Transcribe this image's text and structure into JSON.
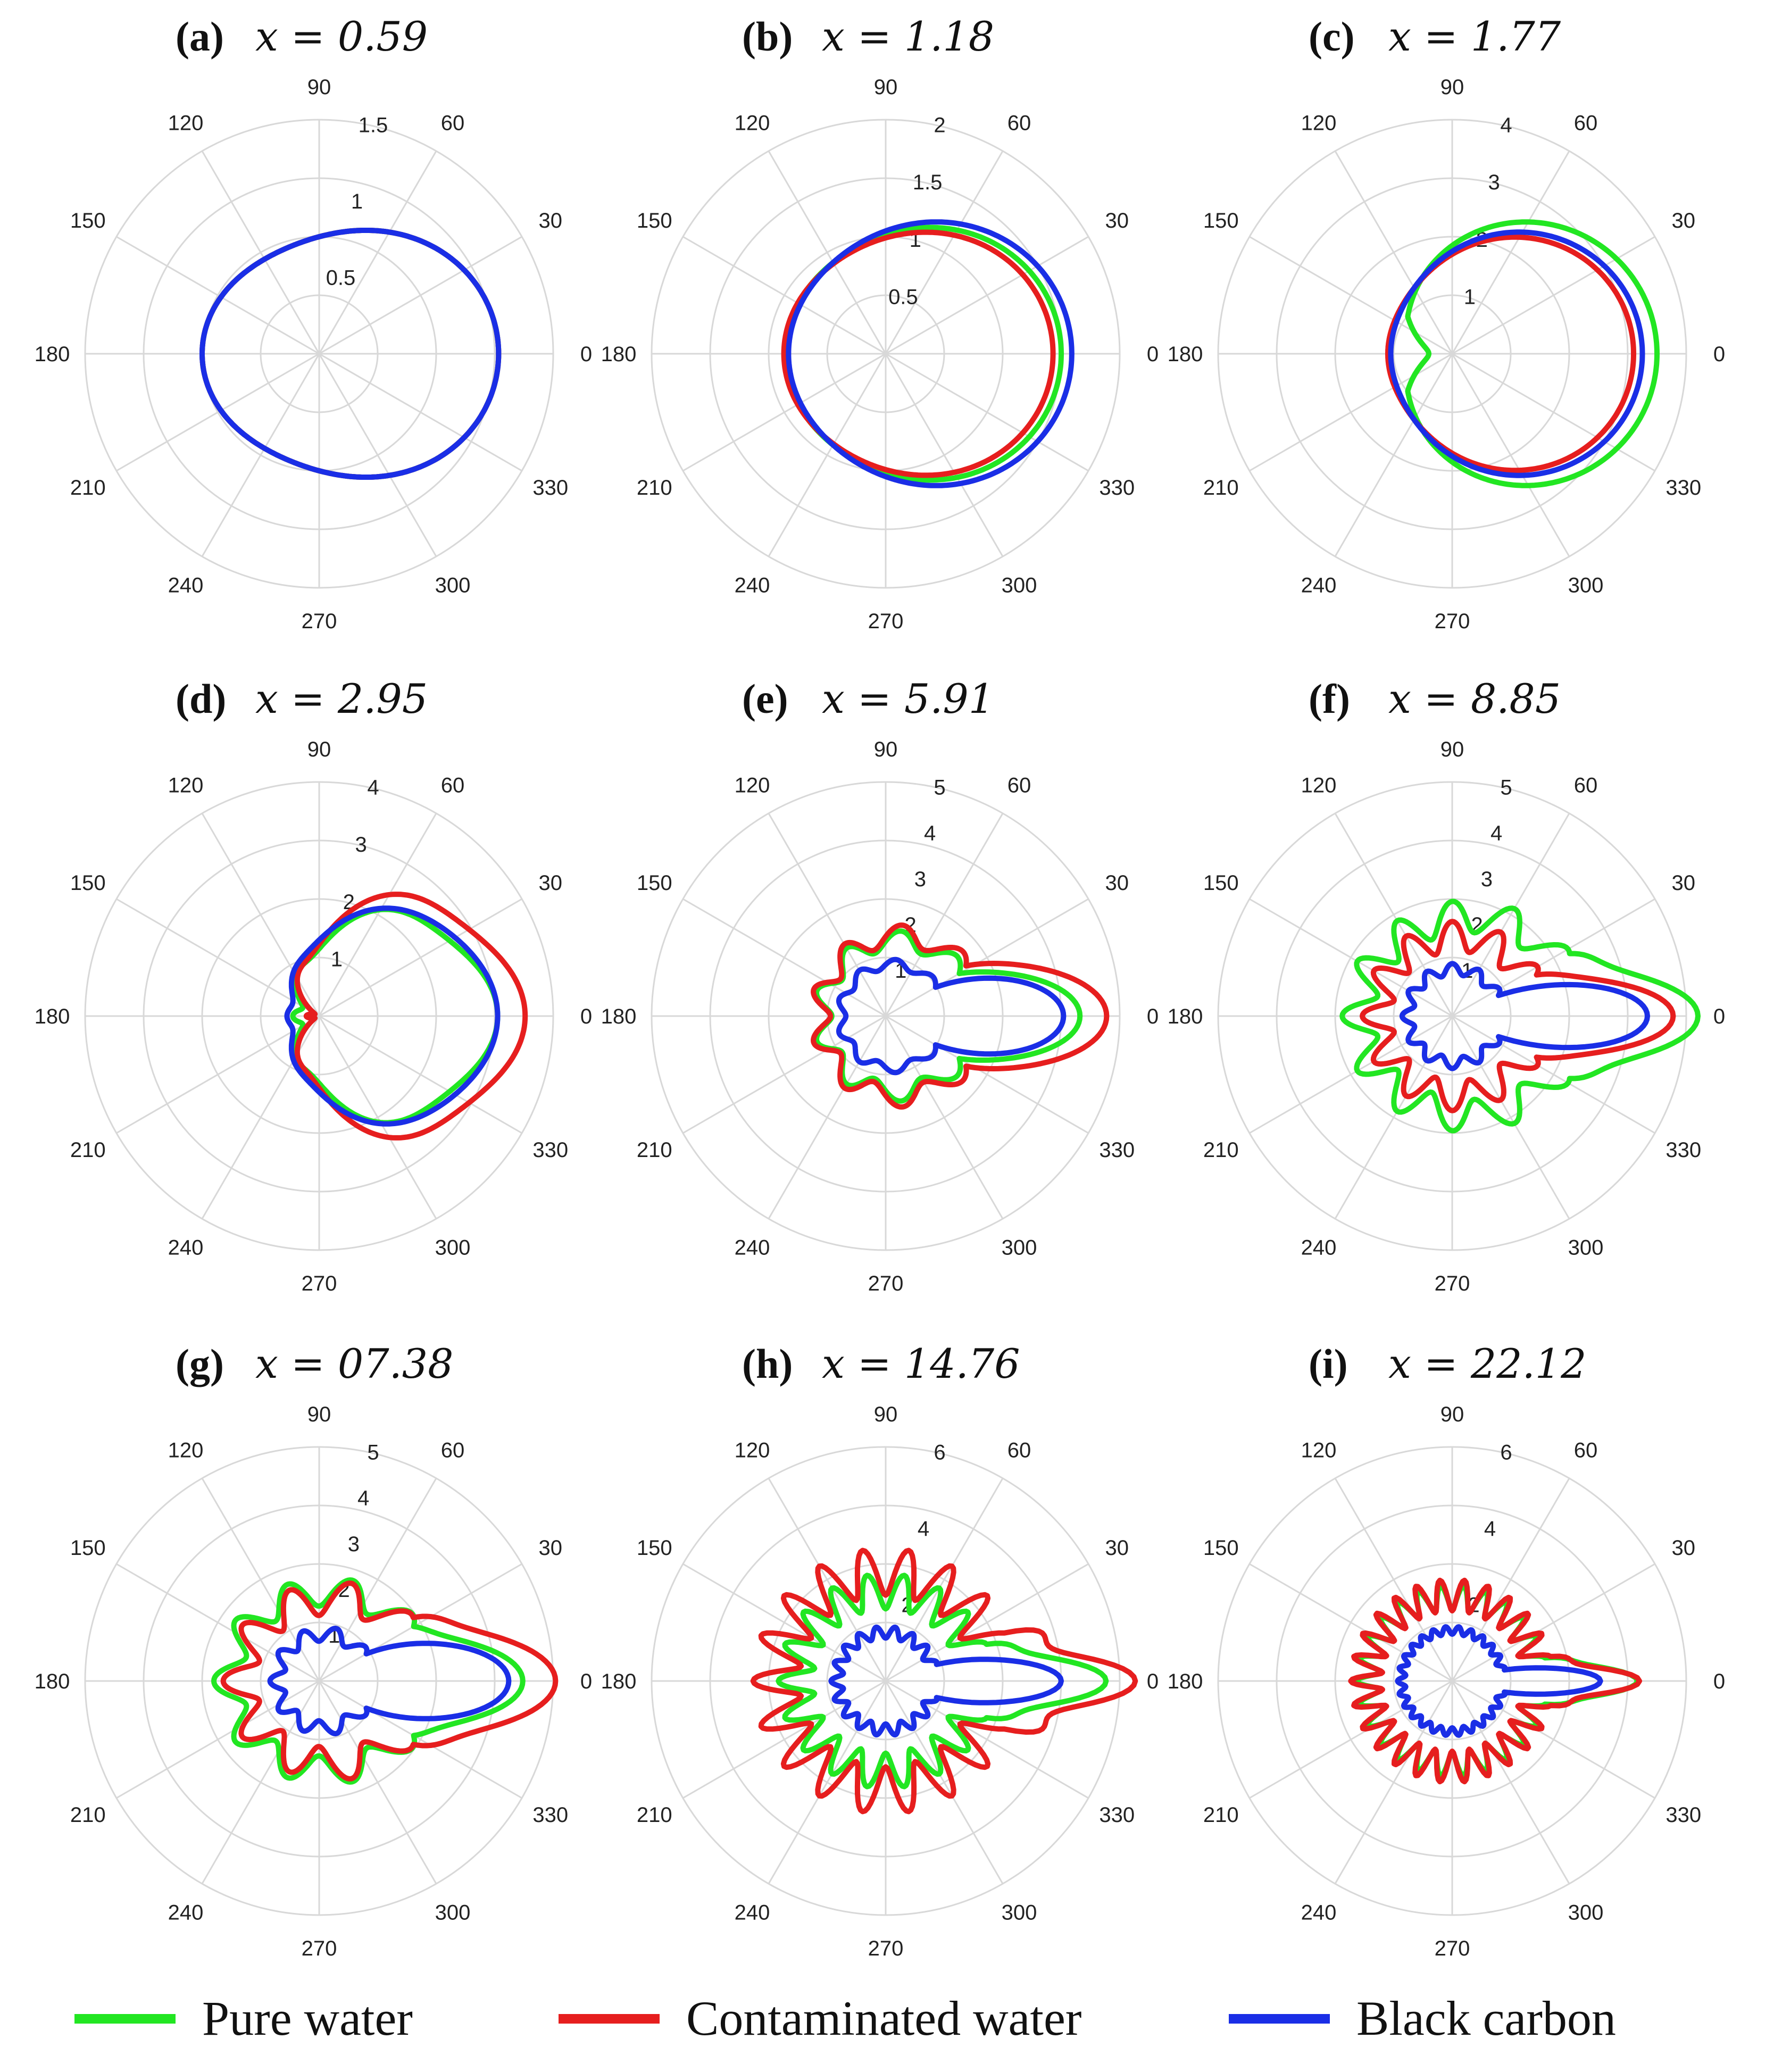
{
  "colors": {
    "pure_water": "#22e622",
    "contaminated_water": "#e61e1e",
    "black_carbon": "#1a2ee6",
    "grid": "#d8d8d8"
  },
  "legend": [
    {
      "key": "pure_water",
      "label": "Pure water",
      "color": "#22e622"
    },
    {
      "key": "contaminated_water",
      "label": "Contaminated water",
      "color": "#e61e1e"
    },
    {
      "key": "black_carbon",
      "label": "Black carbon",
      "color": "#1a2ee6"
    }
  ],
  "angle_ticks": [
    "0",
    "30",
    "60",
    "90",
    "120",
    "150",
    "180",
    "210",
    "240",
    "270",
    "300",
    "330"
  ],
  "chart_data": [
    {
      "type": "polar",
      "panel": "(a)",
      "title": "x = 0.59",
      "r_max": 1.5,
      "r_ticks": [
        "0.5",
        "1",
        "1.5"
      ],
      "r_tick_values": [
        0.5,
        1,
        1.5
      ],
      "series": [
        {
          "name": "Pure water",
          "model": {
            "base": 0.85,
            "a1": 0.2,
            "a2": 0.1,
            "osc": 0,
            "freq": 0,
            "fwd": 0,
            "fwd_w": 0,
            "dip": 0
          }
        },
        {
          "name": "Contaminated water",
          "model": {
            "base": 0.85,
            "a1": 0.2,
            "a2": 0.1,
            "osc": 0,
            "freq": 0,
            "fwd": 0,
            "fwd_w": 0,
            "dip": 0
          }
        },
        {
          "name": "Black carbon",
          "model": {
            "base": 0.85,
            "a1": 0.2,
            "a2": 0.1,
            "osc": 0,
            "freq": 0,
            "fwd": 0,
            "fwd_w": 0,
            "dip": 0
          }
        }
      ]
    },
    {
      "type": "polar",
      "panel": "(b)",
      "title": "x = 1.18",
      "r_max": 2,
      "r_ticks": [
        "0.5",
        "1",
        "1.5",
        "2"
      ],
      "r_tick_values": [
        0.5,
        1,
        1.5,
        2
      ],
      "series": [
        {
          "name": "Pure water",
          "model": {
            "base": 1.1,
            "a1": 0.32,
            "a2": 0.08,
            "osc": 0,
            "freq": 0,
            "fwd": 0,
            "fwd_w": 0,
            "dip": 0
          }
        },
        {
          "name": "Contaminated water",
          "model": {
            "base": 1.07,
            "a1": 0.28,
            "a2": 0.08,
            "osc": 0,
            "freq": 0,
            "fwd": 0,
            "fwd_w": 0,
            "dip": 0
          }
        },
        {
          "name": "Black carbon",
          "model": {
            "base": 1.13,
            "a1": 0.38,
            "a2": 0.08,
            "osc": 0,
            "freq": 0,
            "fwd": 0,
            "fwd_w": 0,
            "dip": 0
          }
        }
      ]
    },
    {
      "type": "polar",
      "panel": "(c)",
      "title": "x = 1.77",
      "r_max": 4,
      "r_ticks": [
        "1",
        "2",
        "3",
        "4"
      ],
      "r_tick_values": [
        1,
        2,
        3,
        4
      ],
      "series": [
        {
          "name": "Pure water",
          "model": {
            "base": 2.0,
            "a1": 1.35,
            "a2": 0.15,
            "osc": 0,
            "freq": 0,
            "fwd": 0,
            "fwd_w": 0,
            "dip": 0.4
          }
        },
        {
          "name": "Contaminated water",
          "model": {
            "base": 1.9,
            "a1": 1.0,
            "a2": 0.2,
            "osc": 0,
            "freq": 0,
            "fwd": 0,
            "fwd_w": 0,
            "dip": 0
          }
        },
        {
          "name": "Black carbon",
          "model": {
            "base": 1.95,
            "a1": 1.1,
            "a2": 0.2,
            "osc": 0,
            "freq": 0,
            "fwd": 0,
            "fwd_w": 0,
            "dip": 0
          }
        }
      ]
    },
    {
      "type": "polar",
      "panel": "(d)",
      "title": "x = 2.95",
      "r_max": 4,
      "r_ticks": [
        "1",
        "2",
        "3",
        "4"
      ],
      "r_tick_values": [
        1,
        2,
        3,
        4
      ],
      "series": [
        {
          "name": "Pure water",
          "model": {
            "base": 1.45,
            "a1": 1.3,
            "a2": 0.2,
            "osc": 0.1,
            "freq": 6,
            "fwd": 0,
            "fwd_w": 0,
            "dip": 0
          }
        },
        {
          "name": "Contaminated water",
          "model": {
            "base": 1.55,
            "a1": 1.65,
            "a2": 0.2,
            "osc": 0.12,
            "freq": 6,
            "fwd": 0,
            "fwd_w": 0,
            "dip": 0
          }
        },
        {
          "name": "Black carbon",
          "model": {
            "base": 1.55,
            "a1": 1.25,
            "a2": 0.2,
            "osc": 0.05,
            "freq": 6,
            "fwd": 0,
            "fwd_w": 0,
            "dip": 0
          }
        }
      ]
    },
    {
      "type": "polar",
      "panel": "(e)",
      "title": "x = 5.91",
      "r_max": 5,
      "r_ticks": [
        "1",
        "2",
        "3",
        "4",
        "5"
      ],
      "r_tick_values": [
        1,
        2,
        3,
        4,
        5
      ],
      "series": [
        {
          "name": "Pure water",
          "model": {
            "base": 1.6,
            "a1": 0.25,
            "a2": 0,
            "osc": 0.2,
            "freq": 9,
            "fwd": 2.1,
            "fwd_w": 30,
            "dip": 0
          }
        },
        {
          "name": "Contaminated water",
          "model": {
            "base": 1.7,
            "a1": 0.3,
            "a2": 0,
            "osc": 0.22,
            "freq": 9,
            "fwd": 2.5,
            "fwd_w": 32,
            "dip": 0
          }
        },
        {
          "name": "Black carbon",
          "model": {
            "base": 1.1,
            "a1": 0.15,
            "a2": 0,
            "osc": 0.1,
            "freq": 9,
            "fwd": 2.45,
            "fwd_w": 30,
            "dip": 0
          }
        }
      ]
    },
    {
      "type": "polar",
      "panel": "(f)",
      "title": "x = 8.85",
      "r_max": 5,
      "r_ticks": [
        "1",
        "2",
        "3",
        "4",
        "5"
      ],
      "r_tick_values": [
        1,
        2,
        3,
        4,
        5
      ],
      "series": [
        {
          "name": "Pure water",
          "model": {
            "base": 2.2,
            "a1": 0.3,
            "a2": 0.1,
            "osc": 0.35,
            "freq": 12,
            "fwd": 2.3,
            "fwd_w": 28,
            "dip": 0
          }
        },
        {
          "name": "Contaminated water",
          "model": {
            "base": 1.7,
            "a1": 0.1,
            "a2": 0,
            "osc": 0.32,
            "freq": 12,
            "fwd": 2.6,
            "fwd_w": 26,
            "dip": 0
          }
        },
        {
          "name": "Black carbon",
          "model": {
            "base": 1.0,
            "a1": 0.05,
            "a2": 0,
            "osc": 0.12,
            "freq": 12,
            "fwd": 3.0,
            "fwd_w": 24,
            "dip": 0
          }
        }
      ]
    },
    {
      "type": "polar",
      "panel": "(g)",
      "title": "x = 07.38",
      "r_max": 5,
      "r_ticks": [
        "1",
        "2",
        "3",
        "4",
        "5"
      ],
      "r_tick_values": [
        1,
        2,
        3,
        4,
        5
      ],
      "series": [
        {
          "name": "Pure water",
          "model": {
            "base": 2.0,
            "a1": 0.15,
            "a2": 0.1,
            "osc": 0.3,
            "freq": 10,
            "fwd": 1.8,
            "fwd_w": 30,
            "dip": 0
          }
        },
        {
          "name": "Contaminated water",
          "model": {
            "base": 1.85,
            "a1": 0.25,
            "a2": 0.1,
            "osc": 0.35,
            "freq": 10,
            "fwd": 2.5,
            "fwd_w": 34,
            "dip": 0
          }
        },
        {
          "name": "Black carbon",
          "model": {
            "base": 1.0,
            "a1": 0.1,
            "a2": 0,
            "osc": 0.15,
            "freq": 10,
            "fwd": 2.8,
            "fwd_w": 30,
            "dip": 0
          }
        }
      ]
    },
    {
      "type": "polar",
      "panel": "(h)",
      "title": "x = 14.76",
      "r_max": 6,
      "r_ticks": [
        "2",
        "4",
        "6"
      ],
      "r_tick_values": [
        2,
        4,
        6
      ],
      "series": [
        {
          "name": "Pure water",
          "model": {
            "base": 2.3,
            "a1": 0,
            "a2": 0,
            "osc": 0.45,
            "freq": 18,
            "fwd": 2.9,
            "fwd_w": 20,
            "dip": 0
          }
        },
        {
          "name": "Contaminated water",
          "model": {
            "base": 2.8,
            "a1": 0,
            "a2": 0,
            "osc": 0.6,
            "freq": 18,
            "fwd": 3.0,
            "fwd_w": 22,
            "dip": 0
          }
        },
        {
          "name": "Black carbon",
          "model": {
            "base": 1.25,
            "a1": 0,
            "a2": 0,
            "osc": 0.15,
            "freq": 18,
            "fwd": 3.1,
            "fwd_w": 18,
            "dip": 0
          }
        }
      ]
    },
    {
      "type": "polar",
      "panel": "(i)",
      "title": "x = 22.12",
      "r_max": 6,
      "r_ticks": [
        "2",
        "4",
        "6"
      ],
      "r_tick_values": [
        2,
        4,
        6
      ],
      "series": [
        {
          "name": "Pure water",
          "model": {
            "base": 2.15,
            "a1": 0,
            "a2": 0,
            "osc": 0.3,
            "freq": 26,
            "fwd": 2.3,
            "fwd_w": 14,
            "dip": 0
          }
        },
        {
          "name": "Contaminated water",
          "model": {
            "base": 2.2,
            "a1": 0,
            "a2": 0,
            "osc": 0.4,
            "freq": 26,
            "fwd": 2.2,
            "fwd_w": 14,
            "dip": 0
          }
        },
        {
          "name": "Black carbon",
          "model": {
            "base": 1.3,
            "a1": 0,
            "a2": 0,
            "osc": 0.1,
            "freq": 26,
            "fwd": 2.4,
            "fwd_w": 12,
            "dip": 0
          }
        }
      ]
    }
  ]
}
